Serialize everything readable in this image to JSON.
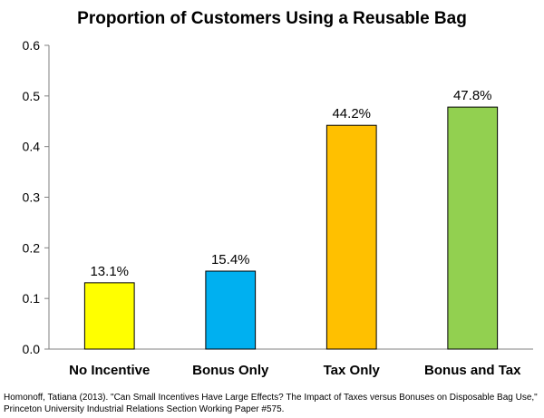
{
  "chart_data": {
    "type": "bar",
    "title": "Proportion of Customers Using a Reusable Bag",
    "categories": [
      "No Incentive",
      "Bonus Only",
      "Tax Only",
      "Bonus and Tax"
    ],
    "values": [
      0.131,
      0.154,
      0.442,
      0.478
    ],
    "data_labels": [
      "13.1%",
      "15.4%",
      "44.2%",
      "47.8%"
    ],
    "colors": [
      "#FFFF00",
      "#00B0F0",
      "#FFC000",
      "#92D050"
    ],
    "xlabel": "",
    "ylabel": "",
    "ylim": [
      0,
      0.6
    ],
    "yticks": [
      0,
      0.1,
      0.2,
      0.3,
      0.4,
      0.5,
      0.6
    ],
    "ytick_labels": [
      "0.0",
      "0.1",
      "0.2",
      "0.3",
      "0.4",
      "0.5",
      "0.6"
    ],
    "grid": false,
    "legend": "none"
  },
  "citation": "Homonoff, Tatiana (2013).  \"Can Small Incentives Have Large Effects? The Impact of Taxes versus Bonuses on Disposable Bag Use,\" Princeton University Industrial Relations Section Working Paper #575."
}
